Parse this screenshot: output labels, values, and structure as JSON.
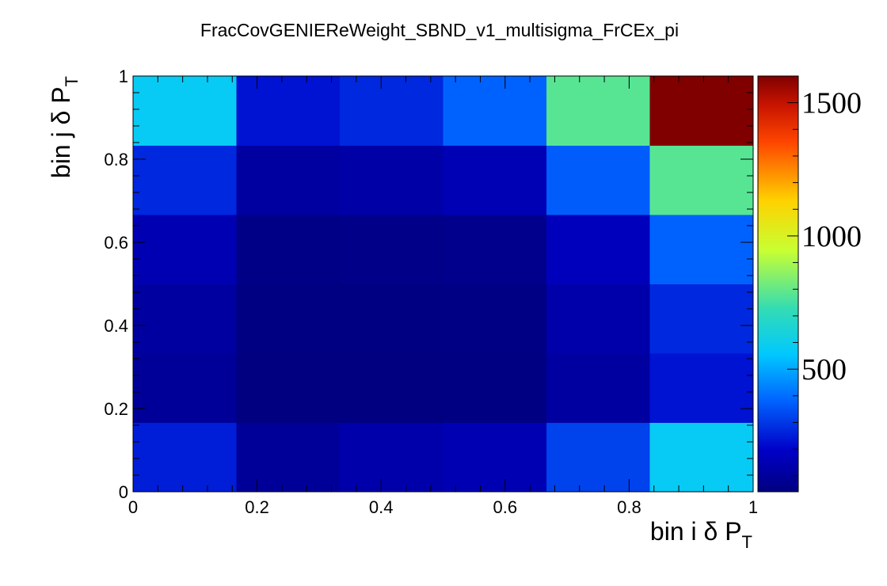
{
  "chart_data": {
    "type": "heatmap",
    "title": "FracCovGENIEReWeight_SBND_v1_multisigma_FrCEx_pi",
    "xlabel": "bin i δ P",
    "xlabel_sub": "T",
    "ylabel": "bin j δ P",
    "ylabel_sub": "T",
    "xlim": [
      0,
      1
    ],
    "ylim": [
      0,
      1
    ],
    "x_ticks": [
      "0",
      "0.2",
      "0.4",
      "0.6",
      "0.8",
      "1"
    ],
    "y_ticks": [
      "0",
      "0.2",
      "0.4",
      "0.6",
      "0.8",
      "1"
    ],
    "x_bins": [
      0,
      0.1667,
      0.3333,
      0.5,
      0.6667,
      0.8333,
      1
    ],
    "y_bins": [
      0,
      0.1667,
      0.3333,
      0.5,
      0.6667,
      0.8333,
      1
    ],
    "z_range": [
      40,
      1600
    ],
    "z_ticks": [
      500,
      1000,
      1500
    ],
    "z_tick_labels": [
      "500",
      "1000",
      "1500"
    ],
    "values": [
      [
        250,
        95,
        130,
        150,
        320,
        580
      ],
      [
        95,
        40,
        40,
        45,
        110,
        230
      ],
      [
        110,
        45,
        45,
        50,
        130,
        270
      ],
      [
        150,
        55,
        60,
        65,
        170,
        380
      ],
      [
        270,
        110,
        125,
        155,
        370,
        780
      ],
      [
        580,
        230,
        270,
        380,
        780,
        1600
      ]
    ],
    "colormap": [
      "#000080",
      "#0000c8",
      "#0064ff",
      "#00c8ff",
      "#32dcb4",
      "#c8ff32",
      "#ffd200",
      "#ff4600",
      "#c81400",
      "#800000"
    ]
  }
}
